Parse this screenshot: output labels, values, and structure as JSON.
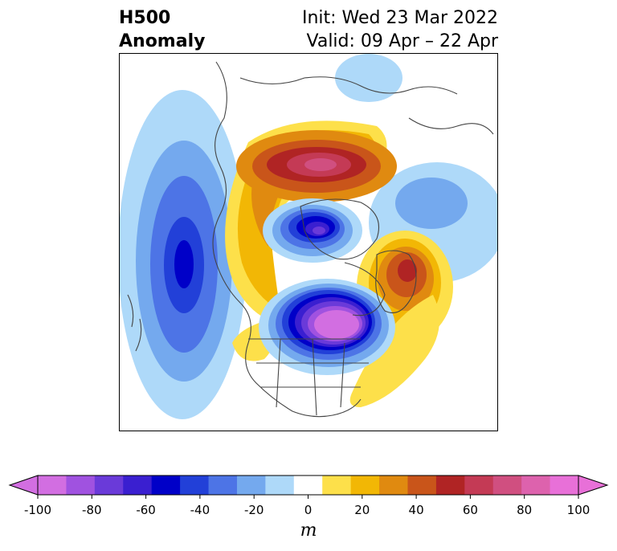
{
  "header": {
    "variable": "H500",
    "field": "Anomaly",
    "init": "Init: Wed 23 Mar 2022",
    "valid": "Valid: 09 Apr – 22 Apr"
  },
  "colorbar": {
    "unit": "m",
    "tick_labels": [
      "-100",
      "-80",
      "-60",
      "-40",
      "-20",
      "0",
      "20",
      "40",
      "60",
      "80",
      "100"
    ],
    "bins": [
      {
        "range": "-100 to -90",
        "color": "#d26ee1"
      },
      {
        "range": "-90 to -80",
        "color": "#a052e0"
      },
      {
        "range": "-80 to -70",
        "color": "#6a3ad9"
      },
      {
        "range": "-70 to -60",
        "color": "#3a1fd0"
      },
      {
        "range": "-60 to -50",
        "color": "#0000c8"
      },
      {
        "range": "-50 to -40",
        "color": "#2240d8"
      },
      {
        "range": "-40 to -30",
        "color": "#4d74e6"
      },
      {
        "range": "-30 to -20",
        "color": "#74a9ee"
      },
      {
        "range": "-20 to -10",
        "color": "#aed9f9"
      },
      {
        "range": "-10 to 10",
        "color": "#ffffff"
      },
      {
        "range": "10 to 20",
        "color": "#fde04a"
      },
      {
        "range": "20 to 30",
        "color": "#f2b705"
      },
      {
        "range": "30 to 40",
        "color": "#e08a10"
      },
      {
        "range": "40 to 50",
        "color": "#c9551a"
      },
      {
        "range": "50 to 60",
        "color": "#b02424"
      },
      {
        "range": "60 to 70",
        "color": "#c43a55"
      },
      {
        "range": "70 to 80",
        "color": "#d04f80"
      },
      {
        "range": "80 to 90",
        "color": "#dd62ad"
      },
      {
        "range": "90 to 100",
        "color": "#e870d8"
      }
    ],
    "under_color": "#d26ee1",
    "over_color": "#e870d8"
  },
  "map": {
    "projection": "north-polar-stereographic",
    "region": "North America / North Pacific / Arctic",
    "anomaly_centers": [
      {
        "name": "central-canada-low",
        "sign": "negative",
        "peak": -100
      },
      {
        "name": "north-pacific-low",
        "sign": "negative",
        "peak": -60
      },
      {
        "name": "arctic-low",
        "sign": "negative",
        "peak": -80
      },
      {
        "name": "east-siberia-ridge",
        "sign": "positive",
        "peak": 70
      },
      {
        "name": "greenland-ridge",
        "sign": "positive",
        "peak": 60
      },
      {
        "name": "alaska-ridge",
        "sign": "positive",
        "peak": 40
      },
      {
        "name": "us-ridge",
        "sign": "positive",
        "peak": 20
      },
      {
        "name": "europe-trough",
        "sign": "negative",
        "peak": -20
      }
    ]
  }
}
